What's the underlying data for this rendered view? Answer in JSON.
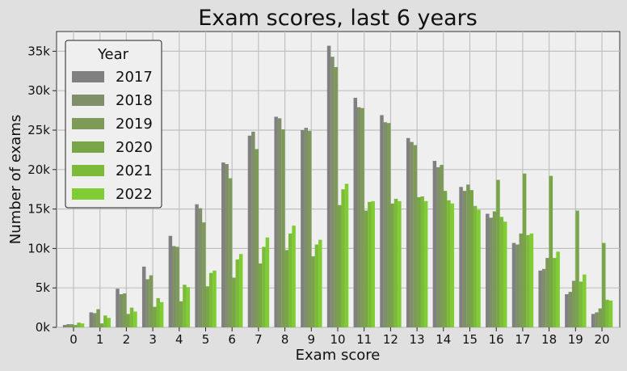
{
  "chart_data": {
    "type": "bar",
    "title": "Exam scores, last 6 years",
    "xlabel": "Exam score",
    "ylabel": "Number of exams",
    "categories": [
      "0",
      "1",
      "2",
      "3",
      "4",
      "5",
      "6",
      "7",
      "8",
      "9",
      "10",
      "11",
      "12",
      "13",
      "14",
      "15",
      "16",
      "17",
      "18",
      "19",
      "20"
    ],
    "ylim": [
      0,
      37500
    ],
    "yticks": [
      0,
      5000,
      10000,
      15000,
      20000,
      25000,
      30000,
      35000
    ],
    "ytick_labels": [
      "0k",
      "5k",
      "10k",
      "15k",
      "20k",
      "25k",
      "30k",
      "35k"
    ],
    "grid": true,
    "legend": {
      "title": "Year",
      "placement": "top-left"
    },
    "colors": [
      "#808080",
      "#7f8f6a",
      "#7d9a58",
      "#78a646",
      "#7cba3a",
      "#80cc33"
    ],
    "series": [
      {
        "name": "2017",
        "values": [
          300,
          1900,
          4900,
          7700,
          11600,
          15600,
          20900,
          24300,
          26700,
          25000,
          35700,
          29100,
          26900,
          24000,
          21100,
          17800,
          14400,
          10700,
          7200,
          4200,
          1700
        ]
      },
      {
        "name": "2018",
        "values": [
          400,
          1800,
          4200,
          6100,
          10300,
          15100,
          20700,
          24800,
          26500,
          25300,
          34300,
          27900,
          26000,
          23500,
          20300,
          17300,
          13900,
          10500,
          7400,
          4500,
          1900
        ]
      },
      {
        "name": "2019",
        "values": [
          400,
          2300,
          4300,
          6600,
          10200,
          13300,
          18900,
          22600,
          25100,
          24900,
          33000,
          27800,
          25900,
          23100,
          20600,
          18100,
          14700,
          11900,
          8800,
          5900,
          2400
        ]
      },
      {
        "name": "2020",
        "values": [
          300,
          500,
          1700,
          2600,
          3300,
          5200,
          6300,
          8100,
          9800,
          9000,
          15500,
          14800,
          15700,
          16500,
          17300,
          17400,
          18700,
          19500,
          19200,
          14800,
          10700
        ]
      },
      {
        "name": "2021",
        "values": [
          600,
          1500,
          2500,
          3700,
          5400,
          6900,
          8600,
          10200,
          11900,
          10500,
          17500,
          15900,
          16300,
          16600,
          16100,
          15400,
          14000,
          11700,
          8800,
          5800,
          3500
        ]
      },
      {
        "name": "2022",
        "values": [
          500,
          1200,
          2000,
          3200,
          5100,
          7200,
          9300,
          11400,
          12900,
          11100,
          18200,
          16000,
          16000,
          16000,
          15700,
          14900,
          13400,
          11900,
          9600,
          6700,
          3400
        ]
      }
    ]
  }
}
